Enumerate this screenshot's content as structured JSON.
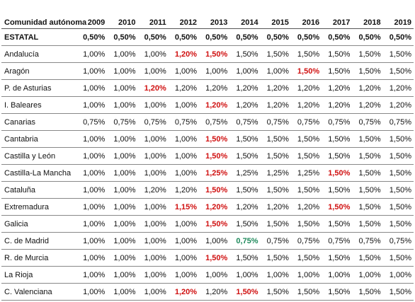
{
  "header": {
    "column_label": "Comunidad autónoma",
    "years": [
      "2009",
      "2010",
      "2011",
      "2012",
      "2013",
      "2014",
      "2015",
      "2016",
      "2017",
      "2018",
      "2019"
    ]
  },
  "colors": {
    "increase": "#d01010",
    "decrease": "#1f8a5c"
  },
  "rows": [
    {
      "name": "ESTATAL",
      "values": [
        "0,50%",
        "0,50%",
        "0,50%",
        "0,50%",
        "0,50%",
        "0,50%",
        "0,50%",
        "0,50%",
        "0,50%",
        "0,50%",
        "0,50%"
      ],
      "red": [],
      "green": []
    },
    {
      "name": "Andalucía",
      "values": [
        "1,00%",
        "1,00%",
        "1,00%",
        "1,20%",
        "1,50%",
        "1,50%",
        "1,50%",
        "1,50%",
        "1,50%",
        "1,50%",
        "1,50%"
      ],
      "red": [
        3,
        4
      ],
      "green": []
    },
    {
      "name": "Aragón",
      "values": [
        "1,00%",
        "1,00%",
        "1,00%",
        "1,00%",
        "1,00%",
        "1,00%",
        "1,00%",
        "1,50%",
        "1,50%",
        "1,50%",
        "1,50%"
      ],
      "red": [
        7
      ],
      "green": []
    },
    {
      "name": "P. de Asturias",
      "values": [
        "1,00%",
        "1,00%",
        "1,20%",
        "1,20%",
        "1,20%",
        "1,20%",
        "1,20%",
        "1,20%",
        "1,20%",
        "1,20%",
        "1,20%"
      ],
      "red": [
        2
      ],
      "green": []
    },
    {
      "name": "I. Baleares",
      "values": [
        "1,00%",
        "1,00%",
        "1,00%",
        "1,00%",
        "1,20%",
        "1,20%",
        "1,20%",
        "1,20%",
        "1,20%",
        "1,20%",
        "1,20%"
      ],
      "red": [
        4
      ],
      "green": []
    },
    {
      "name": "Canarias",
      "values": [
        "0,75%",
        "0,75%",
        "0,75%",
        "0,75%",
        "0,75%",
        "0,75%",
        "0,75%",
        "0,75%",
        "0,75%",
        "0,75%",
        "0,75%"
      ],
      "red": [],
      "green": []
    },
    {
      "name": "Cantabria",
      "values": [
        "1,00%",
        "1,00%",
        "1,00%",
        "1,00%",
        "1,50%",
        "1,50%",
        "1,50%",
        "1,50%",
        "1,50%",
        "1,50%",
        "1,50%"
      ],
      "red": [
        4
      ],
      "green": []
    },
    {
      "name": "Castilla y León",
      "values": [
        "1,00%",
        "1,00%",
        "1,00%",
        "1,00%",
        "1,50%",
        "1,50%",
        "1,50%",
        "1,50%",
        "1,50%",
        "1,50%",
        "1,50%"
      ],
      "red": [
        4
      ],
      "green": []
    },
    {
      "name": "Castilla-La Mancha",
      "values": [
        "1,00%",
        "1,00%",
        "1,00%",
        "1,00%",
        "1,25%",
        "1,25%",
        "1,25%",
        "1,25%",
        "1,50%",
        "1,50%",
        "1,50%"
      ],
      "red": [
        4,
        8
      ],
      "green": []
    },
    {
      "name": "Cataluña",
      "values": [
        "1,00%",
        "1,00%",
        "1,20%",
        "1,20%",
        "1,50%",
        "1,50%",
        "1,50%",
        "1,50%",
        "1,50%",
        "1,50%",
        "1,50%"
      ],
      "red": [
        4
      ],
      "green": []
    },
    {
      "name": "Extremadura",
      "values": [
        "1,00%",
        "1,00%",
        "1,00%",
        "1,15%",
        "1,20%",
        "1,20%",
        "1,20%",
        "1,20%",
        "1,50%",
        "1,50%",
        "1,50%"
      ],
      "red": [
        3,
        4,
        8
      ],
      "green": []
    },
    {
      "name": "Galicia",
      "values": [
        "1,00%",
        "1,00%",
        "1,00%",
        "1,00%",
        "1,50%",
        "1,50%",
        "1,50%",
        "1,50%",
        "1,50%",
        "1,50%",
        "1,50%"
      ],
      "red": [
        4
      ],
      "green": []
    },
    {
      "name": "C. de Madrid",
      "values": [
        "1,00%",
        "1,00%",
        "1,00%",
        "1,00%",
        "1,00%",
        "0,75%",
        "0,75%",
        "0,75%",
        "0,75%",
        "0,75%",
        "0,75%"
      ],
      "red": [],
      "green": [
        5
      ]
    },
    {
      "name": "R. de Murcia",
      "values": [
        "1,00%",
        "1,00%",
        "1,00%",
        "1,00%",
        "1,50%",
        "1,50%",
        "1,50%",
        "1,50%",
        "1,50%",
        "1,50%",
        "1,50%"
      ],
      "red": [
        4
      ],
      "green": []
    },
    {
      "name": "La Rioja",
      "values": [
        "1,00%",
        "1,00%",
        "1,00%",
        "1,00%",
        "1,00%",
        "1,00%",
        "1,00%",
        "1,00%",
        "1,00%",
        "1,00%",
        "1,00%"
      ],
      "red": [],
      "green": []
    },
    {
      "name": "C. Valenciana",
      "values": [
        "1,00%",
        "1,00%",
        "1,00%",
        "1,20%",
        "1,20%",
        "1,50%",
        "1,50%",
        "1,50%",
        "1,50%",
        "1,50%",
        "1,50%"
      ],
      "red": [
        3,
        5
      ],
      "green": []
    }
  ]
}
